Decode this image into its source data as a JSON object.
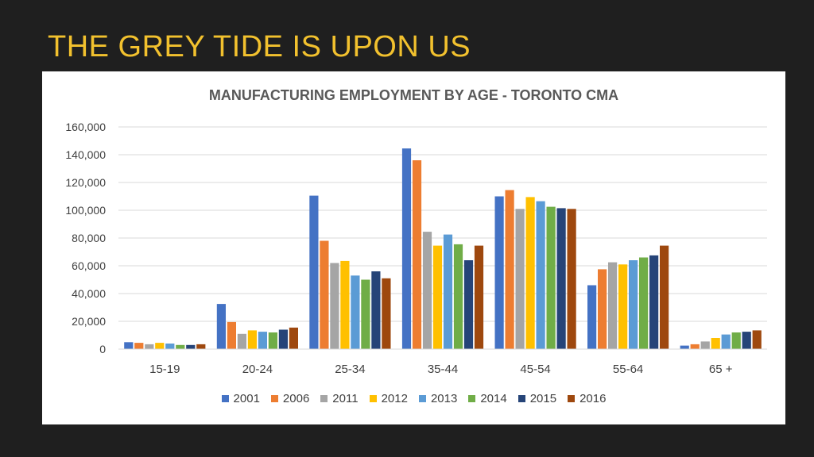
{
  "slide": {
    "title": "THE GREY TIDE IS UPON US"
  },
  "chart_data": {
    "type": "bar",
    "title": "MANUFACTURING EMPLOYMENT BY AGE - TORONTO CMA",
    "xlabel": "",
    "ylabel": "",
    "ylim": [
      0,
      160000
    ],
    "yticks": [
      0,
      20000,
      40000,
      60000,
      80000,
      100000,
      120000,
      140000,
      160000
    ],
    "ytick_labels": [
      "0",
      "20,000",
      "40,000",
      "60,000",
      "80,000",
      "100,000",
      "120,000",
      "140,000",
      "160,000"
    ],
    "grid": true,
    "legend_position": "bottom",
    "categories": [
      "15-19",
      "20-24",
      "25-34",
      "35-44",
      "45-54",
      "55-64",
      "65 +"
    ],
    "series": [
      {
        "name": "2001",
        "color": "#4472c4",
        "values": [
          5000,
          32500,
          110500,
          144500,
          110000,
          46000,
          2500
        ]
      },
      {
        "name": "2006",
        "color": "#ed7d31",
        "values": [
          4500,
          19500,
          78000,
          136000,
          114500,
          57500,
          3500
        ]
      },
      {
        "name": "2011",
        "color": "#a5a5a5",
        "values": [
          3500,
          11000,
          62000,
          84500,
          101000,
          62500,
          5500
        ]
      },
      {
        "name": "2012",
        "color": "#ffc000",
        "values": [
          4500,
          13500,
          63500,
          74500,
          109500,
          61000,
          8000
        ]
      },
      {
        "name": "2013",
        "color": "#5b9bd5",
        "values": [
          4000,
          12500,
          53000,
          82500,
          106500,
          64000,
          10500
        ]
      },
      {
        "name": "2014",
        "color": "#70ad47",
        "values": [
          3000,
          12000,
          50000,
          75500,
          102500,
          66000,
          12000
        ]
      },
      {
        "name": "2015",
        "color": "#264478",
        "values": [
          3000,
          14000,
          56000,
          64000,
          101500,
          67500,
          12500
        ]
      },
      {
        "name": "2016",
        "color": "#9e480e",
        "values": [
          3500,
          15500,
          51000,
          74500,
          101000,
          74500,
          13500
        ]
      }
    ]
  }
}
